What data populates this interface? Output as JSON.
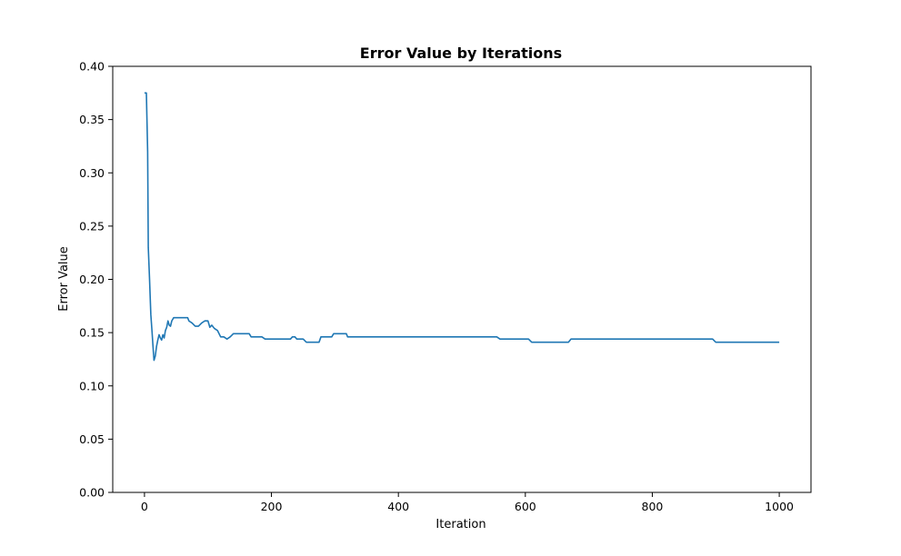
{
  "chart_data": {
    "type": "line",
    "title": "Error Value by Iterations",
    "xlabel": "Iteration",
    "ylabel": "Error Value",
    "xlim": [
      -50,
      1050
    ],
    "ylim": [
      0.0,
      0.4
    ],
    "grid": false,
    "legend": "none",
    "x_ticks": [
      0,
      200,
      400,
      600,
      800,
      1000
    ],
    "y_ticks": [
      0.0,
      0.05,
      0.1,
      0.15,
      0.2,
      0.25,
      0.3,
      0.35,
      0.4
    ],
    "x_tick_labels": [
      "0",
      "200",
      "400",
      "600",
      "800",
      "1000"
    ],
    "y_tick_labels": [
      "0.00",
      "0.05",
      "0.10",
      "0.15",
      "0.20",
      "0.25",
      "0.30",
      "0.35",
      "0.40"
    ],
    "colors": {
      "line": "#1f77b4",
      "axes": "#000000",
      "background": "#ffffff"
    },
    "series": [
      {
        "points": [
          [
            0,
            0.375
          ],
          [
            3,
            0.375
          ],
          [
            5,
            0.32
          ],
          [
            6,
            0.23
          ],
          [
            8,
            0.2
          ],
          [
            10,
            0.167
          ],
          [
            12,
            0.15
          ],
          [
            14,
            0.132
          ],
          [
            15,
            0.124
          ],
          [
            17,
            0.128
          ],
          [
            19,
            0.137
          ],
          [
            21,
            0.143
          ],
          [
            23,
            0.148
          ],
          [
            25,
            0.145
          ],
          [
            27,
            0.143
          ],
          [
            29,
            0.148
          ],
          [
            31,
            0.145
          ],
          [
            33,
            0.152
          ],
          [
            35,
            0.155
          ],
          [
            37,
            0.161
          ],
          [
            39,
            0.157
          ],
          [
            41,
            0.156
          ],
          [
            43,
            0.161
          ],
          [
            46,
            0.164
          ],
          [
            48,
            0.164
          ],
          [
            68,
            0.164
          ],
          [
            70,
            0.161
          ],
          [
            75,
            0.159
          ],
          [
            80,
            0.156
          ],
          [
            85,
            0.156
          ],
          [
            90,
            0.159
          ],
          [
            95,
            0.161
          ],
          [
            100,
            0.161
          ],
          [
            103,
            0.155
          ],
          [
            106,
            0.157
          ],
          [
            110,
            0.154
          ],
          [
            115,
            0.152
          ],
          [
            120,
            0.146
          ],
          [
            125,
            0.146
          ],
          [
            130,
            0.144
          ],
          [
            135,
            0.146
          ],
          [
            140,
            0.149
          ],
          [
            165,
            0.149
          ],
          [
            168,
            0.146
          ],
          [
            185,
            0.146
          ],
          [
            190,
            0.144
          ],
          [
            230,
            0.144
          ],
          [
            233,
            0.146
          ],
          [
            237,
            0.146
          ],
          [
            240,
            0.144
          ],
          [
            250,
            0.144
          ],
          [
            255,
            0.141
          ],
          [
            275,
            0.141
          ],
          [
            278,
            0.146
          ],
          [
            295,
            0.146
          ],
          [
            298,
            0.149
          ],
          [
            318,
            0.149
          ],
          [
            320,
            0.146
          ],
          [
            555,
            0.146
          ],
          [
            560,
            0.144
          ],
          [
            605,
            0.144
          ],
          [
            610,
            0.141
          ],
          [
            668,
            0.141
          ],
          [
            672,
            0.144
          ],
          [
            895,
            0.144
          ],
          [
            900,
            0.141
          ],
          [
            1000,
            0.141
          ]
        ]
      }
    ]
  }
}
